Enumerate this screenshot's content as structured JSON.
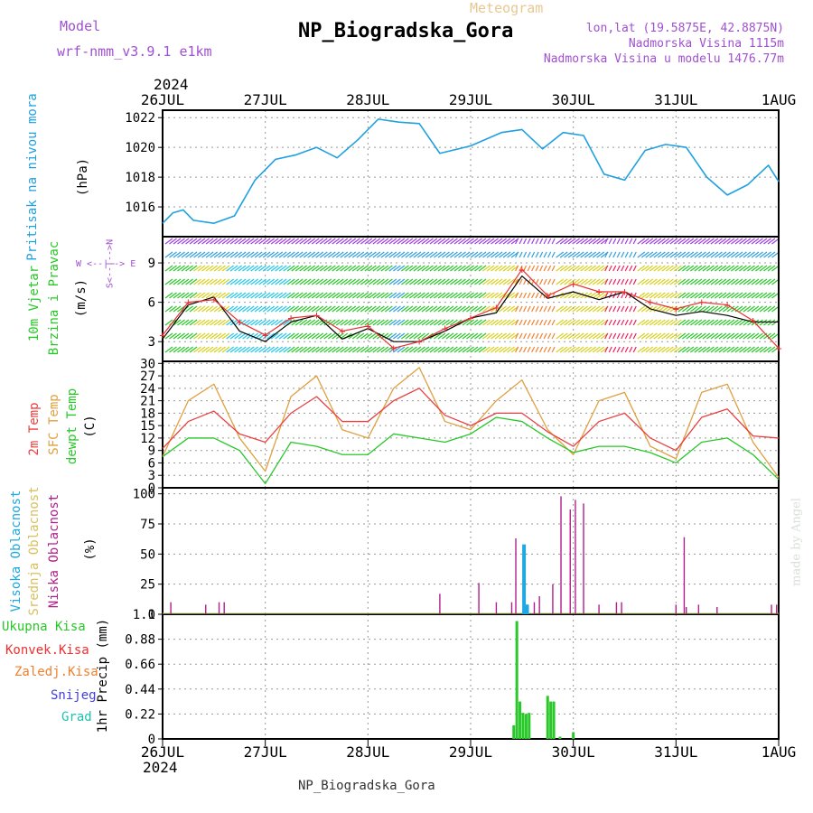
{
  "header": {
    "model_label": "Model",
    "model_value": "wrf-nmm_v3.9.1 e1km",
    "product": "Meteogram",
    "station": "NP_Biogradska_Gora",
    "lonlat": "lon,lat (19.5875E, 42.8875N)",
    "elevation": "Nadmorska Visina 1115m",
    "model_elevation": "Nadmorska Visina u modelu 1476.77m",
    "year_top": "2024",
    "year_bottom": "2024",
    "footer_station": "NP_Biogradska_Gora",
    "credit": "made by Angel"
  },
  "colors": {
    "pressure": "#1fa0e0",
    "temp2m": "#e84040",
    "sfc_temp": "#e0a040",
    "dewpt": "#28c828",
    "high_cloud": "#20a8e0",
    "mid_cloud": "#d8c060",
    "low_cloud": "#b0208a",
    "total_precip": "#28c828",
    "conv_precip": "#ee3030",
    "freezing_precip": "#f08030",
    "snow": "#4040e0",
    "hail": "#20c0b0",
    "wind_speed_line": "#000000",
    "wind_gust": "#e83030",
    "model_text": "#a050d0",
    "grid": "#999999"
  },
  "time_axis": {
    "labels": [
      "26JUL",
      "27JUL",
      "28JUL",
      "29JUL",
      "30JUL",
      "31JUL",
      "1AUG"
    ]
  },
  "panels": {
    "pressure": {
      "label": "Pritisak na nivou mora",
      "unit": "(hPa)"
    },
    "wind": {
      "label_1": "10m Vjetar",
      "label_2": "Brzina i Pravac",
      "unit": "(m/s)",
      "compass": "W <--|--> E",
      "compass_v": "S<--|-->N"
    },
    "temperature": {
      "label_1": "2m Temp",
      "label_2": "SFC Temp",
      "label_3": "dewpt Temp",
      "unit": "(C)"
    },
    "cloud": {
      "label_1": "Visoka Oblacnost",
      "label_2": "Srednja Oblacnost",
      "label_3": "Niska Oblacnost",
      "unit": "(%)"
    },
    "precip": {
      "legend": [
        "Ukupna Kisa",
        "Konvek.Kisa",
        "Zaledj.Kisa",
        "Snijeg",
        "Grad"
      ],
      "unit": "1hr Precip (mm)"
    }
  },
  "chart_data": [
    {
      "type": "line",
      "name": "pressure",
      "ylabel": "(hPa)",
      "ylim": [
        1014,
        1022.5
      ],
      "yticks": [
        1016,
        1018,
        1020,
        1022
      ],
      "x": [
        0,
        0.1,
        0.2,
        0.3,
        0.5,
        0.7,
        0.9,
        1.1,
        1.3,
        1.5,
        1.7,
        1.9,
        2.1,
        2.3,
        2.5,
        2.7,
        3.0,
        3.3,
        3.5,
        3.7,
        3.9,
        4.1,
        4.3,
        4.5,
        4.7,
        4.9,
        5.1,
        5.3,
        5.5,
        5.7,
        5.9,
        6.0
      ],
      "series": [
        {
          "values": [
            1014.9,
            1015.6,
            1015.8,
            1015.1,
            1014.9,
            1015.4,
            1017.8,
            1019.2,
            1019.5,
            1020.0,
            1019.3,
            1020.5,
            1021.9,
            1021.7,
            1021.6,
            1019.6,
            1020.1,
            1021.0,
            1021.2,
            1019.9,
            1021.0,
            1020.8,
            1018.2,
            1017.8,
            1019.8,
            1020.2,
            1020.0,
            1018.0,
            1016.8,
            1017.5,
            1018.8,
            1017.7
          ]
        }
      ],
      "grid": true
    },
    {
      "type": "line",
      "name": "wind",
      "ylabel": "(m/s)",
      "ylim": [
        1.5,
        11
      ],
      "yticks": [
        3,
        6,
        9
      ],
      "x": [
        0,
        0.25,
        0.5,
        0.75,
        1.0,
        1.25,
        1.5,
        1.75,
        2.0,
        2.25,
        2.5,
        2.75,
        3.0,
        3.25,
        3.5,
        3.75,
        4.0,
        4.25,
        4.5,
        4.75,
        5.0,
        5.25,
        5.5,
        5.75,
        6.0
      ],
      "series": [
        {
          "values": [
            3.2,
            5.8,
            6.4,
            3.8,
            3.0,
            4.5,
            5.0,
            3.2,
            4.0,
            3.0,
            3.0,
            3.8,
            4.8,
            5.2,
            8.0,
            6.3,
            6.8,
            6.2,
            6.8,
            5.5,
            5.0,
            5.3,
            5.0,
            4.5,
            4.5
          ]
        },
        {
          "values": [
            3.5,
            6.0,
            6.2,
            4.5,
            3.5,
            4.8,
            5.0,
            3.8,
            4.2,
            2.5,
            3.0,
            4.0,
            4.8,
            5.6,
            8.5,
            6.5,
            7.4,
            6.8,
            6.8,
            6.0,
            5.5,
            6.0,
            5.8,
            4.6,
            2.5
          ]
        }
      ],
      "grid": true
    },
    {
      "type": "line",
      "name": "temperature",
      "ylabel": "(C)",
      "ylim": [
        0,
        30.5
      ],
      "yticks": [
        0,
        3,
        6,
        9,
        12,
        15,
        18,
        21,
        24,
        27,
        30
      ],
      "x": [
        0,
        0.25,
        0.5,
        0.75,
        1.0,
        1.25,
        1.5,
        1.75,
        2.0,
        2.25,
        2.5,
        2.75,
        3.0,
        3.25,
        3.5,
        3.75,
        4.0,
        4.25,
        4.5,
        4.75,
        5.0,
        5.25,
        5.5,
        5.75,
        6.0
      ],
      "series": [
        {
          "values": [
            9.5,
            16.0,
            18.5,
            13.0,
            11.0,
            18.0,
            22.0,
            16.0,
            16.0,
            21.0,
            24.0,
            17.5,
            15.0,
            18.0,
            18.0,
            13.5,
            10.0,
            16.0,
            18.0,
            12.0,
            9.0,
            17.0,
            19.0,
            12.5,
            12.0
          ]
        },
        {
          "values": [
            7.5,
            21.0,
            25.0,
            12.0,
            4.0,
            22.0,
            27.0,
            14.0,
            12.0,
            24.0,
            29.0,
            16.0,
            14.0,
            21.0,
            26.0,
            14.0,
            8.0,
            21.0,
            23.0,
            10.0,
            7.0,
            23.0,
            25.0,
            11.0,
            2.5
          ]
        },
        {
          "values": [
            7.5,
            12.0,
            12.0,
            9.0,
            1.0,
            11.0,
            10.0,
            8.0,
            8.0,
            13.0,
            12.0,
            11.0,
            13.0,
            17.0,
            16.0,
            12.0,
            8.5,
            10.0,
            10.0,
            8.5,
            6.0,
            11.0,
            12.0,
            8.0,
            2.0
          ]
        }
      ],
      "grid": true
    },
    {
      "type": "bar",
      "name": "cloud",
      "ylabel": "(%)",
      "ylim": [
        0,
        105
      ],
      "yticks": [
        0,
        25,
        50,
        75,
        100
      ],
      "x": [
        0.08,
        0.42,
        0.55,
        0.6,
        2.7,
        3.08,
        3.25,
        3.4,
        3.44,
        3.52,
        3.55,
        3.62,
        3.67,
        3.8,
        3.88,
        3.97,
        4.02,
        4.1,
        4.25,
        4.42,
        4.47,
        5.0,
        5.08,
        5.1,
        5.22,
        5.4,
        5.93,
        5.98
      ],
      "series": [
        {
          "name": "low",
          "values": [
            10,
            8,
            10,
            10,
            17,
            26,
            10,
            10,
            63,
            53,
            8,
            10,
            15,
            25,
            98,
            87,
            95,
            92,
            8,
            10,
            10,
            8,
            64,
            6,
            8,
            6,
            8,
            8
          ]
        },
        {
          "name": "high",
          "values": [
            0,
            0,
            0,
            0,
            0,
            0,
            0,
            0,
            0,
            58,
            8,
            0,
            0,
            0,
            0,
            0,
            0,
            0,
            0,
            0,
            0,
            0,
            0,
            0,
            0,
            0,
            0,
            0
          ]
        }
      ],
      "grid": true
    },
    {
      "type": "bar",
      "name": "precip",
      "ylabel": "1hr Precip (mm)",
      "ylim": [
        0,
        1.1
      ],
      "yticks": [
        0,
        0.22,
        0.44,
        0.66,
        0.88,
        1.1
      ],
      "x": [
        3.42,
        3.45,
        3.48,
        3.51,
        3.54,
        3.57,
        3.6,
        3.65,
        3.75,
        3.78,
        3.81,
        3.87,
        4.0
      ],
      "series": [
        {
          "name": "Ukupna Kisa",
          "values": [
            0.12,
            1.04,
            0.33,
            0.23,
            0.22,
            0.23,
            0.0,
            0.0,
            0.38,
            0.33,
            0.33,
            0.02,
            0.06
          ]
        }
      ],
      "grid": true
    }
  ]
}
